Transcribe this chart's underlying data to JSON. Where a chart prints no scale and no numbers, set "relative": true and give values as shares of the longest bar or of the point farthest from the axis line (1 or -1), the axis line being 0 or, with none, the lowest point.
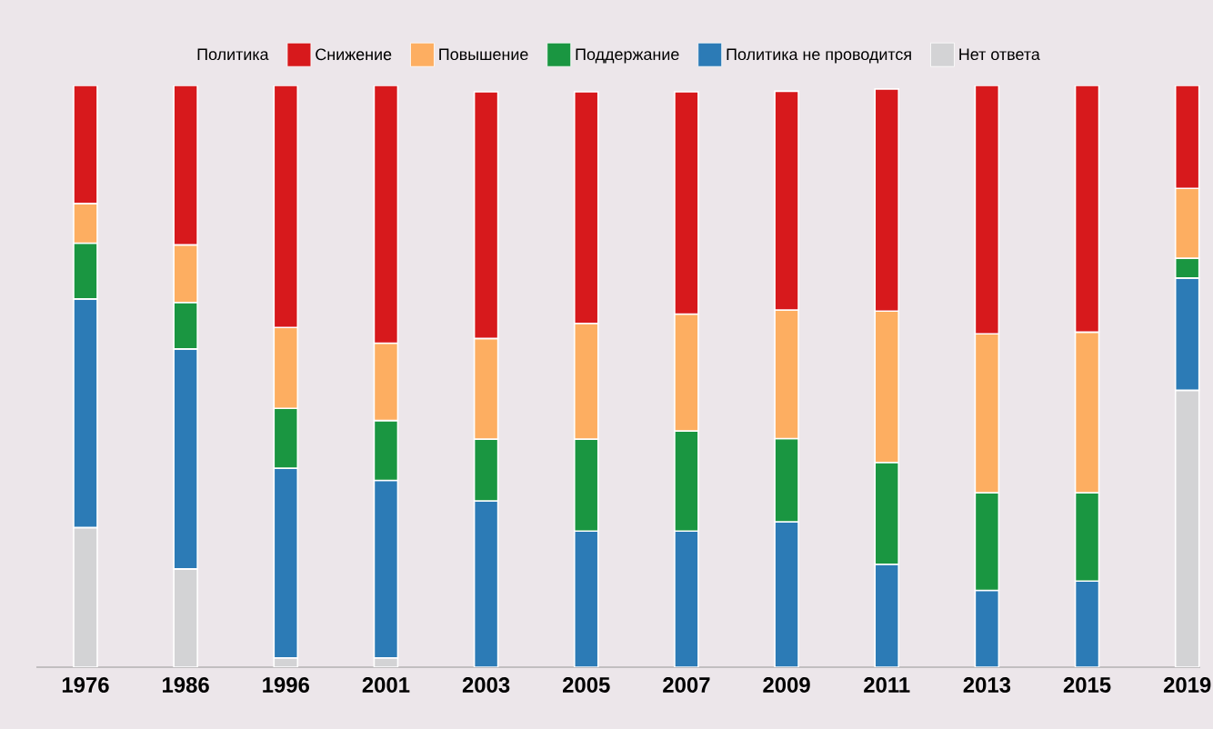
{
  "chart_data": {
    "type": "bar",
    "stacked": true,
    "relative": true,
    "legend": "top",
    "legend_title": "Политика",
    "categories": [
      "1976",
      "1986",
      "1996",
      "2001",
      "2003",
      "2005",
      "2007",
      "2009",
      "2011",
      "2013",
      "2015",
      "2019"
    ],
    "series": [
      {
        "name": "Нет ответа",
        "color": "#d3d3d5",
        "values": [
          0.24,
          0.169,
          0.016,
          0.016,
          null,
          null,
          null,
          null,
          null,
          null,
          null,
          0.476
        ]
      },
      {
        "name": "Политика не проводится",
        "color": "#2c7bb6",
        "values": [
          0.393,
          0.378,
          0.326,
          0.305,
          0.286,
          0.234,
          0.234,
          0.25,
          0.177,
          0.132,
          0.148,
          0.193
        ]
      },
      {
        "name": "Поддержание",
        "color": "#1a9641",
        "values": [
          0.096,
          0.08,
          0.103,
          0.103,
          0.106,
          0.158,
          0.172,
          0.143,
          0.175,
          0.168,
          0.152,
          0.034
        ]
      },
      {
        "name": "Повышение",
        "color": "#fdae61",
        "values": [
          0.068,
          0.099,
          0.139,
          0.133,
          0.173,
          0.199,
          0.201,
          0.221,
          0.26,
          0.273,
          0.276,
          0.12
        ]
      },
      {
        "name": "Снижение",
        "color": "#d7191c",
        "values": [
          0.203,
          0.274,
          0.416,
          0.443,
          0.424,
          0.398,
          0.382,
          0.376,
          0.382,
          0.427,
          0.424,
          0.177
        ]
      }
    ]
  }
}
